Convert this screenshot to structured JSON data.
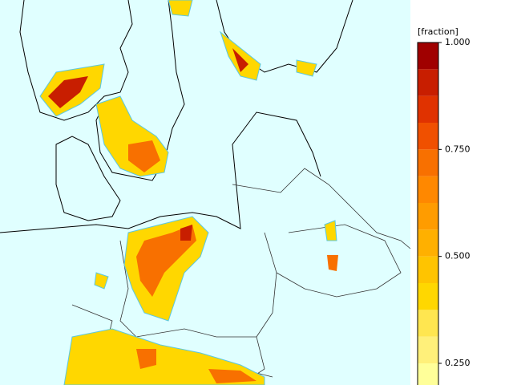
{
  "colorbar": {
    "label": "[fraction]",
    "ticks": [
      {
        "value": 1,
        "label": "1.000"
      },
      {
        "value": 0.75,
        "label": "0.750"
      },
      {
        "value": 0.5,
        "label": "0.500"
      },
      {
        "value": 0.25,
        "label": "0.250"
      }
    ],
    "levels": [
      0.1875,
      0.25,
      0.3125,
      0.375,
      0.4375,
      0.5,
      0.5625,
      0.625,
      0.6875,
      0.75,
      0.8125,
      0.875,
      0.9375,
      1
    ],
    "colors": [
      "#ffff99",
      "#fff07a",
      "#ffe650",
      "#ffd700",
      "#ffc400",
      "#ffb000",
      "#ff9c00",
      "#ff8800",
      "#f87000",
      "#f05000",
      "#e03200",
      "#c81e00",
      "#a00000"
    ]
  }
}
